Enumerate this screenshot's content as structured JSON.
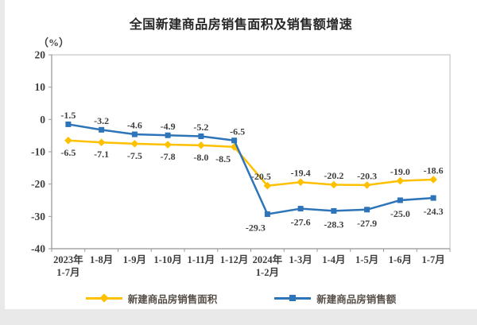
{
  "page": {
    "background": "#e9e9e9",
    "panel_background": "#ffffff"
  },
  "chart_data": {
    "type": "line",
    "title": "全国新建商品房销售面积及销售额增速",
    "unit_label": "（%）",
    "categories": [
      {
        "line1": "2023年",
        "line2": "1-7月"
      },
      {
        "line1": "1-8月"
      },
      {
        "line1": "1-9月"
      },
      {
        "line1": "1-10月"
      },
      {
        "line1": "1-11月"
      },
      {
        "line1": "1-12月"
      },
      {
        "line1": "2024年",
        "line2": "1-2月"
      },
      {
        "line1": "1-3月"
      },
      {
        "line1": "1-4月"
      },
      {
        "line1": "1-5月"
      },
      {
        "line1": "1-6月"
      },
      {
        "line1": "1-7月"
      }
    ],
    "series": [
      {
        "name": "新建商品房销售面积",
        "color": "#FFC000",
        "marker": "diamond",
        "values": [
          -6.5,
          -7.1,
          -7.5,
          -7.8,
          -8.0,
          -8.5,
          -20.5,
          -19.4,
          -20.2,
          -20.3,
          -19.0,
          -18.6
        ]
      },
      {
        "name": "新建商品房销售额",
        "color": "#2E74B8",
        "marker": "square",
        "values": [
          -1.5,
          -3.2,
          -4.6,
          -4.9,
          -5.2,
          -6.5,
          -29.3,
          -27.6,
          -28.3,
          -27.9,
          -25.0,
          -24.3
        ]
      }
    ],
    "ylim": [
      -40,
      20
    ],
    "yticks": [
      20,
      10,
      0,
      -10,
      -20,
      -30,
      -40
    ],
    "grid": false,
    "legend_position": "bottom",
    "axis_color": "#9a9a9a",
    "frame_color": "#c6c6c6",
    "label_color": "#3f3f3f"
  }
}
